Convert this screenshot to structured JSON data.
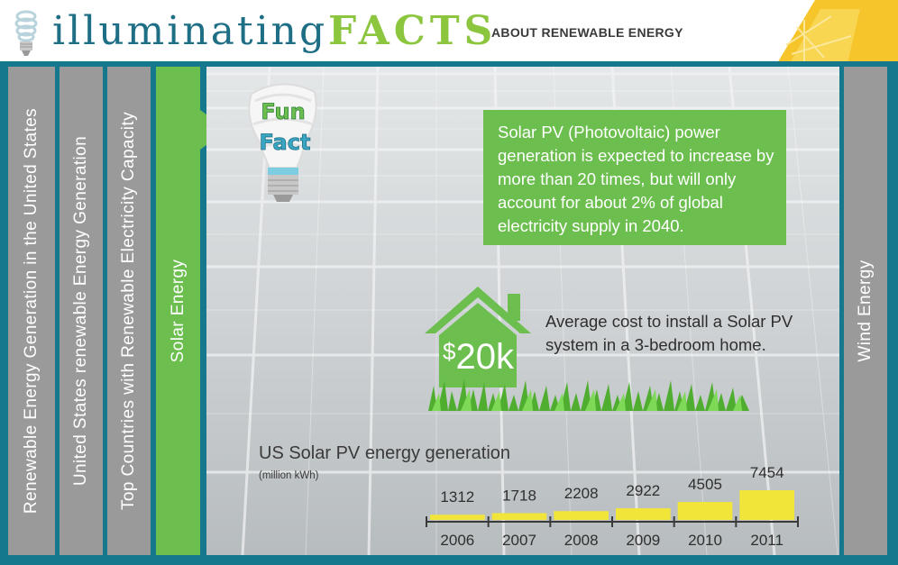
{
  "header": {
    "title_main": "illuminating",
    "title_accent": "FACTS",
    "subtitle": "ABOUT RENEWABLE ENERGY"
  },
  "tabs": [
    {
      "label": "Renewable Energy Generation in the United States",
      "active": false
    },
    {
      "label": "United States renewable Energy Generation",
      "active": false
    },
    {
      "label": "Top Countries with Renewable Electricity Capacity",
      "active": false
    },
    {
      "label": "Solar Energy",
      "active": true
    },
    {
      "label": "Wind Energy",
      "active": false
    }
  ],
  "fun_fact": {
    "badge_line1": "Fun",
    "badge_line2": "Fact",
    "text": "Solar PV (Photovoltaic) power generation is expected to increase by more than 20 times, but will only account for about 2% of global electricity supply in 2040."
  },
  "cost": {
    "amount_prefix": "$",
    "amount": "20k",
    "text": "Average cost to install a Solar PV system in a 3-bedroom home."
  },
  "chart_data": {
    "type": "bar",
    "title": "US Solar PV energy generation",
    "unit_label": "(million kWh)",
    "xlabel": "",
    "ylabel": "million kWh",
    "categories": [
      "2006",
      "2007",
      "2008",
      "2009",
      "2010",
      "2011"
    ],
    "values": [
      1312,
      1718,
      2208,
      2922,
      4505,
      7454
    ],
    "ylim": [
      0,
      7454
    ],
    "color": "#f2e53a"
  },
  "colors": {
    "teal": "#16788d",
    "green": "#6cbf4f",
    "tab_gray": "#9a9a9a",
    "bar_yellow": "#f2e53a"
  }
}
